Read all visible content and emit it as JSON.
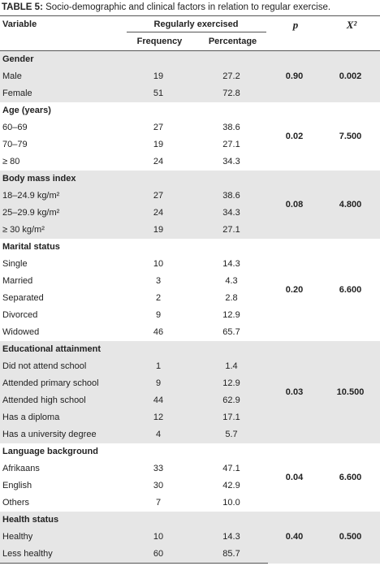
{
  "title": {
    "label": "TABLE 5:",
    "text": "Socio-demographic and clinical factors in relation to regular exercise."
  },
  "header": {
    "variable": "Variable",
    "group": "Regularly exercised",
    "frequency": "Frequency",
    "percentage": "Percentage",
    "p": "p",
    "x2": "X²"
  },
  "groups": [
    {
      "name": "Gender",
      "p": "0.90",
      "x2": "0.002",
      "rows": [
        [
          "Male",
          "19",
          "27.2"
        ],
        [
          "Female",
          "51",
          "72.8"
        ]
      ]
    },
    {
      "name": "Age (years)",
      "p": "0.02",
      "x2": "7.500",
      "rows": [
        [
          "60–69",
          "27",
          "38.6"
        ],
        [
          "70–79",
          "19",
          "27.1"
        ],
        [
          "≥ 80",
          "24",
          "34.3"
        ]
      ]
    },
    {
      "name": "Body mass index",
      "p": "0.08",
      "x2": "4.800",
      "rows": [
        [
          "18–24.9 kg/m²",
          "27",
          "38.6"
        ],
        [
          "25–29.9 kg/m²",
          "24",
          "34.3"
        ],
        [
          "≥ 30 kg/m²",
          "19",
          "27.1"
        ]
      ]
    },
    {
      "name": "Marital status",
      "p": "0.20",
      "x2": "6.600",
      "rows": [
        [
          "Single",
          "10",
          "14.3"
        ],
        [
          "Married",
          "3",
          "4.3"
        ],
        [
          "Separated",
          "2",
          "2.8"
        ],
        [
          "Divorced",
          "9",
          "12.9"
        ],
        [
          "Widowed",
          "46",
          "65.7"
        ]
      ]
    },
    {
      "name": "Educational attainment",
      "p": "0.03",
      "x2": "10.500",
      "rows": [
        [
          "Did not attend school",
          "1",
          "1.4"
        ],
        [
          "Attended primary school",
          "9",
          "12.9"
        ],
        [
          "Attended high school",
          "44",
          "62.9"
        ],
        [
          "Has a diploma",
          "12",
          "17.1"
        ],
        [
          "Has a university degree",
          "4",
          "5.7"
        ]
      ]
    },
    {
      "name": "Language background",
      "p": "0.04",
      "x2": "6.600",
      "rows": [
        [
          "Afrikaans",
          "33",
          "47.1"
        ],
        [
          "English",
          "30",
          "42.9"
        ],
        [
          "Others",
          "7",
          "10.0"
        ]
      ]
    },
    {
      "name": "Health status",
      "p": "0.40",
      "x2": "0.500",
      "rows": [
        [
          "Healthy",
          "10",
          "14.3"
        ],
        [
          "Less healthy",
          "60",
          "85.7"
        ]
      ]
    }
  ]
}
